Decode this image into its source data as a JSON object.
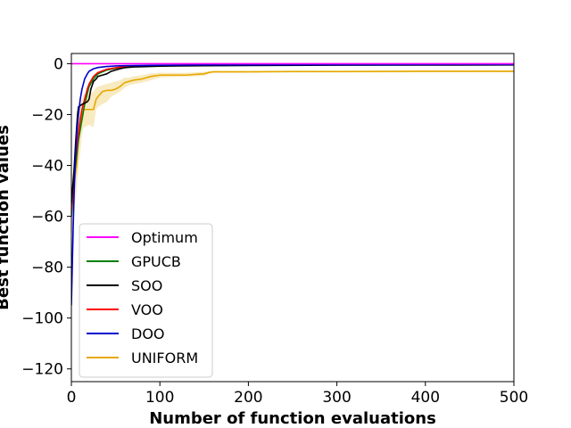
{
  "chart_data": {
    "type": "line",
    "title": "",
    "xlabel": "Number of function evaluations",
    "ylabel": "Best function values",
    "xlim": [
      0,
      500
    ],
    "ylim": [
      -125,
      4
    ],
    "xticks": [
      0,
      100,
      200,
      300,
      400,
      500
    ],
    "yticks": [
      0,
      -20,
      -40,
      -60,
      -80,
      -100,
      -120
    ],
    "grid": false,
    "legend_position": "lower-left",
    "series": [
      {
        "name": "Optimum",
        "color": "#ff00ff",
        "x": [
          0,
          500
        ],
        "y": [
          0,
          0
        ]
      },
      {
        "name": "GPUCB",
        "color": "#008000",
        "x": [
          0,
          2,
          4,
          6,
          8,
          10,
          12,
          15,
          20,
          25,
          30,
          40,
          50,
          60,
          80,
          100,
          150,
          200,
          300,
          400,
          500
        ],
        "y": [
          -60,
          -50,
          -42,
          -36,
          -30,
          -26,
          -22,
          -16,
          -9,
          -6,
          -4,
          -2.5,
          -1.8,
          -1.3,
          -1.0,
          -0.8,
          -0.6,
          -0.5,
          -0.4,
          -0.35,
          -0.3
        ]
      },
      {
        "name": "SOO",
        "color": "#000000",
        "x": [
          0,
          3,
          5,
          7,
          8,
          12,
          15,
          18,
          20,
          22,
          25,
          28,
          30,
          35,
          40,
          45,
          50,
          55,
          60,
          70,
          80,
          100,
          120,
          150,
          200,
          300,
          400,
          500
        ],
        "y": [
          -55,
          -42,
          -30,
          -20,
          -17,
          -16,
          -15.5,
          -15,
          -14,
          -10,
          -7,
          -6,
          -5,
          -4.5,
          -4,
          -3,
          -2.5,
          -2,
          -1.6,
          -1.3,
          -1.2,
          -1.0,
          -0.9,
          -0.8,
          -0.7,
          -0.6,
          -0.55,
          -0.5
        ]
      },
      {
        "name": "VOO",
        "color": "#ff0000",
        "x": [
          0,
          2,
          4,
          6,
          8,
          10,
          12,
          15,
          18,
          20,
          25,
          30,
          40,
          50,
          60,
          80,
          100,
          150,
          200,
          300,
          400,
          500
        ],
        "y": [
          -58,
          -48,
          -40,
          -33,
          -27,
          -22,
          -18,
          -14,
          -10,
          -8,
          -5,
          -3.5,
          -2.2,
          -1.6,
          -1.2,
          -0.9,
          -0.7,
          -0.5,
          -0.4,
          -0.3,
          -0.25,
          -0.2
        ]
      },
      {
        "name": "DOO",
        "color": "#0000cc",
        "x": [
          0,
          1,
          2,
          3,
          4,
          5,
          6,
          8,
          10,
          12,
          15,
          18,
          20,
          25,
          30,
          40,
          50,
          60,
          80,
          100,
          150,
          200,
          300,
          400,
          500
        ],
        "y": [
          -95,
          -80,
          -65,
          -52,
          -42,
          -35,
          -28,
          -20,
          -14,
          -10,
          -6,
          -4,
          -3,
          -2,
          -1.5,
          -1.1,
          -0.9,
          -0.8,
          -0.7,
          -0.6,
          -0.5,
          -0.45,
          -0.4,
          -0.35,
          -0.3
        ]
      },
      {
        "name": "UNIFORM",
        "color": "#e6a800",
        "x": [
          0,
          2,
          4,
          6,
          8,
          10,
          12,
          14,
          15,
          20,
          25,
          28,
          30,
          35,
          40,
          45,
          50,
          55,
          60,
          65,
          70,
          80,
          90,
          100,
          110,
          120,
          130,
          140,
          150,
          155,
          160,
          200,
          250,
          300,
          400,
          500
        ],
        "y": [
          -60,
          -50,
          -45,
          -40,
          -30,
          -25,
          -20,
          -18,
          -18,
          -18,
          -18,
          -14,
          -13,
          -11,
          -10.5,
          -10.5,
          -10,
          -9,
          -7.5,
          -7,
          -6.5,
          -6,
          -5,
          -4.5,
          -4.5,
          -4.5,
          -4.5,
          -4.2,
          -4,
          -3.5,
          -3.2,
          -3.2,
          -3.1,
          -3.1,
          -3.0,
          -3.0
        ],
        "band_lower": [
          -70,
          -60,
          -55,
          -50,
          -40,
          -35,
          -28,
          -25,
          -25,
          -24,
          -25,
          -18,
          -17,
          -16,
          -15,
          -13,
          -12,
          -11,
          -9.5,
          -8.5,
          -8,
          -7.5,
          -6.5,
          -5.5,
          -5.3,
          -5.2,
          -5.1,
          -5,
          -4.8,
          -4,
          -3.6,
          -3.6,
          -3.5,
          -3.5,
          -3.4,
          -3.4
        ],
        "band_upper": [
          -50,
          -42,
          -36,
          -30,
          -22,
          -17,
          -14,
          -12,
          -12,
          -12,
          -11,
          -9.5,
          -9,
          -8.5,
          -8,
          -7.5,
          -7,
          -6.5,
          -5.5,
          -5.5,
          -5,
          -4.5,
          -3.8,
          -3.6,
          -3.6,
          -3.6,
          -3.6,
          -3.4,
          -3.2,
          -3,
          -2.8,
          -2.8,
          -2.7,
          -2.7,
          -2.6,
          -2.6
        ],
        "band_color": "#f5deA0"
      }
    ]
  }
}
